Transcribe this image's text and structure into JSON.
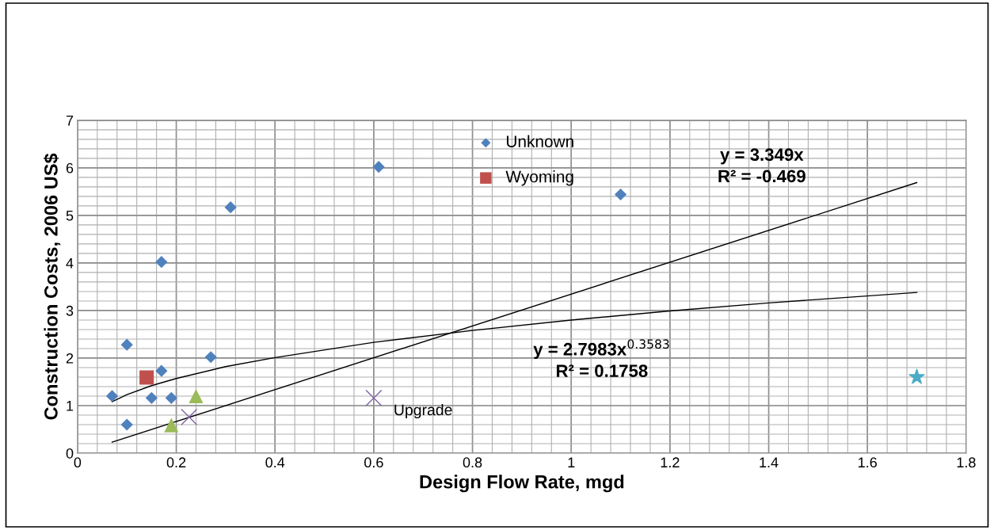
{
  "chart_data": {
    "type": "scatter",
    "xlabel": "Design Flow Rate, mgd",
    "ylabel": "Construction Costs, 2006 US$",
    "xlim": [
      0,
      1.8
    ],
    "xticks": [
      0,
      0.2,
      0.4,
      0.6,
      0.8,
      1,
      1.2,
      1.4,
      1.6,
      1.8
    ],
    "ylim": [
      0,
      7
    ],
    "yticks": [
      0,
      1,
      2,
      3,
      4,
      5,
      6,
      7
    ],
    "grid": true,
    "legend": "top",
    "series": [
      {
        "name": "Unknown",
        "color": "#4f81bd",
        "marker": "diamond",
        "x": [
          0.61,
          0.31,
          0.17,
          0.1,
          0.27,
          0.17,
          0.07,
          0.15,
          0.19,
          0.1,
          1.1
        ],
        "values": [
          6.02,
          5.17,
          4.02,
          2.28,
          2.02,
          1.73,
          1.2,
          1.16,
          1.16,
          0.6,
          5.44
        ]
      },
      {
        "name": "Wyoming",
        "color": "#c0504d",
        "marker": "square",
        "x": [
          0.14
        ],
        "values": [
          1.59
        ]
      },
      {
        "color": "#9bbb59",
        "marker": "triangle",
        "x": [
          0.24,
          0.19
        ],
        "values": [
          1.2,
          0.59
        ]
      },
      {
        "color": "#8064a2",
        "marker": "cross",
        "x": [
          0.226,
          0.6
        ],
        "values": [
          0.76,
          1.16
        ]
      },
      {
        "color": "#4bacc6",
        "marker": "star",
        "x": [
          1.7
        ],
        "values": [
          1.6
        ]
      },
      {
        "type": "line",
        "color": "#000000",
        "marker": "none",
        "x": [
          0.07,
          1.7
        ],
        "values": [
          0.23,
          5.69
        ]
      },
      {
        "type": "line",
        "color": "#000000",
        "marker": "none",
        "x": [
          0.07,
          0.1,
          0.15,
          0.2,
          0.3,
          0.4,
          0.6,
          0.8,
          1.0,
          1.2,
          1.4,
          1.7
        ],
        "values": [
          1.08,
          1.23,
          1.42,
          1.57,
          1.82,
          2.01,
          2.33,
          2.58,
          2.8,
          2.99,
          3.16,
          3.38
        ]
      }
    ],
    "annotations": [
      {
        "text": "Upgrade",
        "x": 0.6,
        "y": 1.16
      },
      "y = 3.349x\nR² = -0.469",
      "y = 2.7983x$^{0.3583}$\nR² = 0.1758"
    ]
  }
}
